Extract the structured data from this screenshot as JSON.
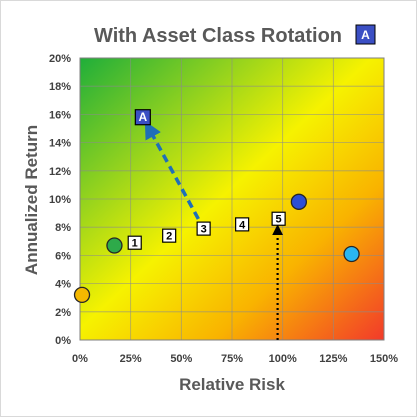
{
  "chart_data": {
    "type": "scatter",
    "title": "With Asset Class Rotation",
    "title_badge": "A",
    "xlabel": "Relative Risk",
    "ylabel": "Annualized Return",
    "xlim": [
      0,
      150
    ],
    "ylim": [
      0,
      20
    ],
    "x_ticks": [
      "0%",
      "25%",
      "50%",
      "75%",
      "100%",
      "125%",
      "150%"
    ],
    "y_ticks": [
      "0%",
      "2%",
      "4%",
      "6%",
      "8%",
      "10%",
      "12%",
      "14%",
      "16%",
      "18%",
      "20%"
    ],
    "grid": true,
    "background": "gradient green (top-left) to yellow to red (bottom-right)",
    "circles": [
      {
        "x": 1,
        "y": 3.2,
        "color": "#f5b800"
      },
      {
        "x": 17,
        "y": 6.7,
        "color": "#2eaa4a"
      },
      {
        "x": 108,
        "y": 9.8,
        "color": "#2d4fd6"
      },
      {
        "x": 134,
        "y": 6.1,
        "color": "#29b6f0"
      }
    ],
    "squares": [
      {
        "label": "1",
        "x": 27,
        "y": 6.9
      },
      {
        "label": "2",
        "x": 44,
        "y": 7.4
      },
      {
        "label": "3",
        "x": 61,
        "y": 7.9
      },
      {
        "label": "4",
        "x": 80,
        "y": 8.2
      },
      {
        "label": "5",
        "x": 98,
        "y": 8.6
      },
      {
        "label": "A",
        "x": 31,
        "y": 15.8,
        "fill": "#3b4fc4"
      }
    ],
    "arrows": [
      {
        "from": [
          61,
          7.9
        ],
        "to": [
          31,
          15.8
        ],
        "style": "dashed",
        "color": "#1f6fb8"
      },
      {
        "from": [
          97.5,
          0
        ],
        "to": [
          97.5,
          8.6
        ],
        "style": "dotted",
        "color": "#000000"
      }
    ]
  }
}
